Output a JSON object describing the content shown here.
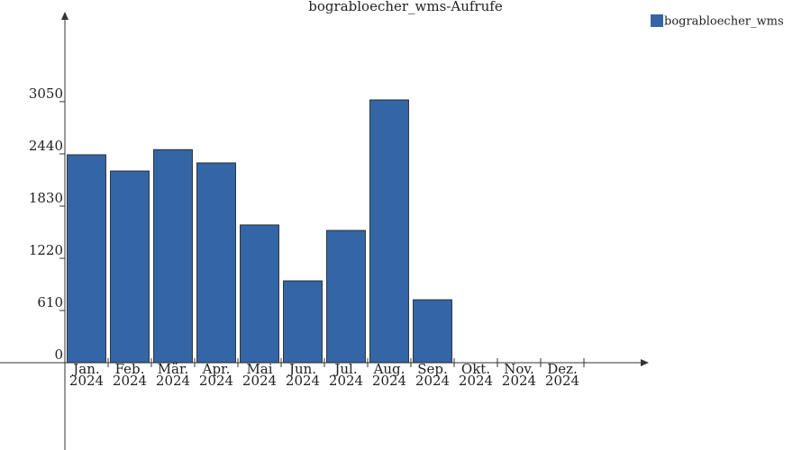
{
  "chart_data": {
    "type": "bar",
    "title": "bograbloecher_wms-Aufrufe",
    "categories": [
      [
        "Jan.",
        "2024"
      ],
      [
        "Feb.",
        "2024"
      ],
      [
        "Mär.",
        "2024"
      ],
      [
        "Apr.",
        "2024"
      ],
      [
        "Mai",
        "2024"
      ],
      [
        "Jun.",
        "2024"
      ],
      [
        "Jul.",
        "2024"
      ],
      [
        "Aug.",
        "2024"
      ],
      [
        "Sep.",
        "2024"
      ],
      [
        "Okt.",
        "2024"
      ],
      [
        "Nov.",
        "2024"
      ],
      [
        "Dez.",
        "2024"
      ]
    ],
    "series": [
      {
        "name": "bograbloecher_wms",
        "color": "#3465a4",
        "values": [
          2430,
          2240,
          2490,
          2335,
          1610,
          957,
          1546,
          3071,
          736,
          0,
          0,
          0
        ]
      }
    ],
    "ylim": [
      -1020,
      4080
    ],
    "yticks": [
      0,
      610,
      1220,
      1830,
      2440,
      3050
    ],
    "grid": false,
    "legend": "top-right"
  }
}
